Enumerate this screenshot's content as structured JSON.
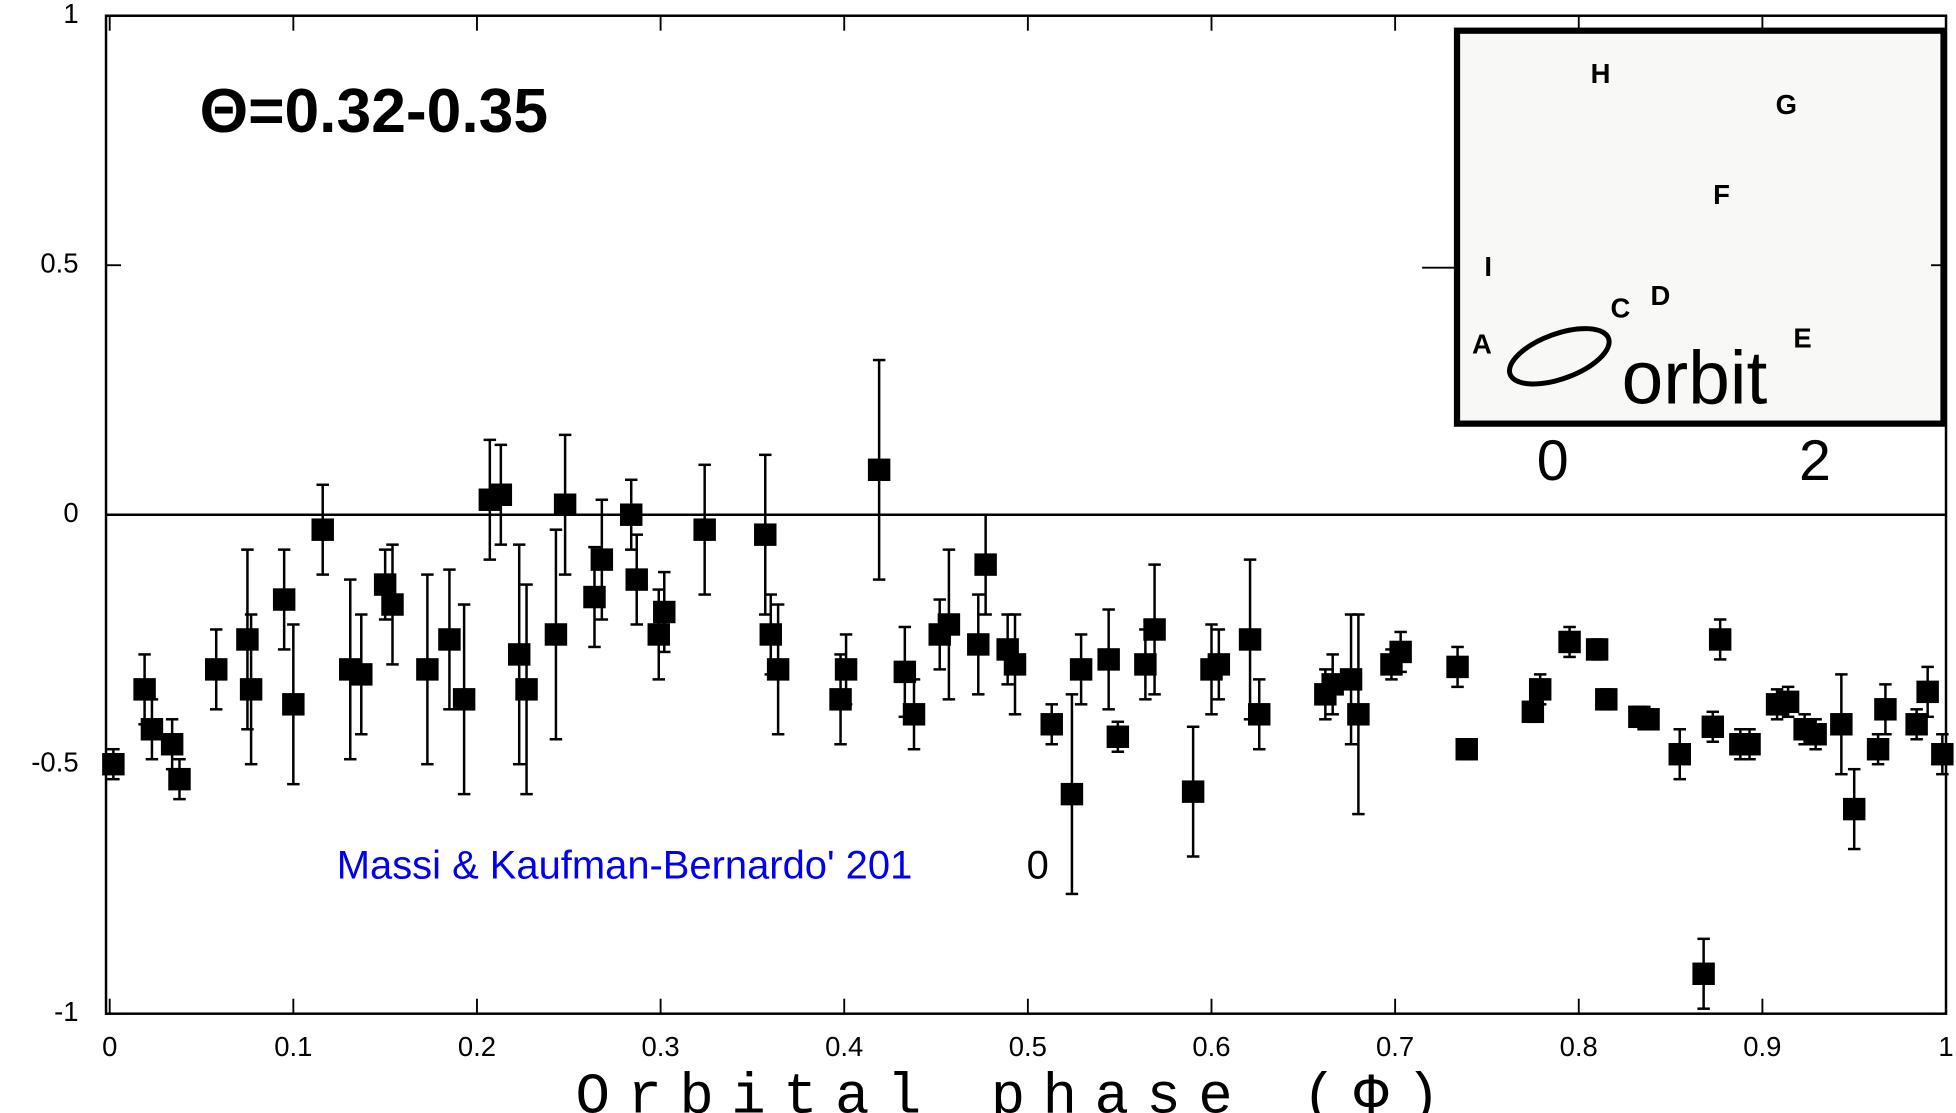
{
  "chart_data": {
    "type": "scatter",
    "annotations": [
      "Θ=0.32-0.35",
      "Massi & Kaufman-Bernardo' 201",
      "0"
    ],
    "x_label": "Orbital phase (Φ)",
    "xlim": [
      -0.002,
      1.0
    ],
    "ylim": [
      -1,
      1
    ],
    "xticks": [
      0,
      0.1,
      0.2,
      0.3,
      0.4,
      0.5,
      0.6,
      0.7,
      0.8,
      0.9,
      1
    ],
    "yticks": [
      -1,
      -0.5,
      0,
      0.5,
      1
    ],
    "hlines": [
      0
    ],
    "color": "#000000",
    "x": [
      0.002,
      0.019,
      0.023,
      0.034,
      0.038,
      0.058,
      0.075,
      0.077,
      0.095,
      0.1,
      0.116,
      0.131,
      0.137,
      0.15,
      0.154,
      0.173,
      0.185,
      0.193,
      0.207,
      0.213,
      0.223,
      0.227,
      0.243,
      0.248,
      0.264,
      0.268,
      0.284,
      0.287,
      0.299,
      0.302,
      0.324,
      0.357,
      0.36,
      0.364,
      0.398,
      0.401,
      0.419,
      0.433,
      0.438,
      0.452,
      0.457,
      0.473,
      0.477,
      0.489,
      0.493,
      0.513,
      0.524,
      0.529,
      0.544,
      0.549,
      0.564,
      0.569,
      0.59,
      0.6,
      0.604,
      0.621,
      0.626,
      0.662,
      0.666,
      0.676,
      0.68,
      0.698,
      0.703,
      0.734,
      0.739,
      0.775,
      0.779,
      0.795,
      0.81,
      0.815,
      0.833,
      0.838,
      0.855,
      0.868,
      0.873,
      0.877,
      0.888,
      0.893,
      0.908,
      0.914,
      0.923,
      0.929,
      0.943,
      0.95,
      0.963,
      0.967,
      0.984,
      0.99,
      0.998
    ],
    "values": [
      -0.5,
      -0.35,
      -0.43,
      -0.46,
      -0.53,
      -0.31,
      -0.25,
      -0.35,
      -0.17,
      -0.38,
      -0.03,
      -0.31,
      -0.32,
      -0.14,
      -0.18,
      -0.31,
      -0.25,
      -0.37,
      0.03,
      0.04,
      -0.28,
      -0.35,
      -0.24,
      0.02,
      -0.165,
      -0.09,
      0.0,
      -0.13,
      -0.24,
      -0.195,
      -0.03,
      -0.04,
      -0.24,
      -0.31,
      -0.37,
      -0.31,
      0.09,
      -0.315,
      -0.4,
      -0.24,
      -0.22,
      -0.26,
      -0.1,
      -0.27,
      -0.3,
      -0.42,
      -0.56,
      -0.31,
      -0.29,
      -0.445,
      -0.3,
      -0.23,
      -0.555,
      -0.31,
      -0.3,
      -0.25,
      -0.4,
      -0.36,
      -0.34,
      -0.33,
      -0.4,
      -0.3,
      -0.275,
      -0.305,
      -0.47,
      -0.395,
      -0.35,
      -0.255,
      -0.27,
      -0.37,
      -0.405,
      -0.41,
      -0.48,
      -0.92,
      -0.425,
      -0.25,
      -0.46,
      -0.46,
      -0.38,
      -0.375,
      -0.43,
      -0.44,
      -0.42,
      -0.59,
      -0.47,
      -0.39,
      -0.42,
      -0.355,
      -0.48
    ],
    "errors": [
      0.03,
      0.07,
      0.06,
      0.05,
      0.04,
      0.08,
      0.18,
      0.15,
      0.1,
      0.16,
      0.09,
      0.18,
      0.12,
      0.07,
      0.12,
      0.19,
      0.14,
      0.19,
      0.12,
      0.1,
      0.22,
      0.21,
      0.21,
      0.14,
      0.1,
      0.12,
      0.07,
      0.09,
      0.09,
      0.08,
      0.13,
      0.16,
      0.08,
      0.13,
      0.09,
      0.07,
      0.22,
      0.09,
      0.07,
      0.07,
      0.15,
      0.1,
      0.1,
      0.07,
      0.1,
      0.04,
      0.2,
      0.07,
      0.1,
      0.03,
      0.07,
      0.13,
      0.13,
      0.09,
      0.07,
      0.16,
      0.07,
      0.05,
      0.06,
      0.13,
      0.2,
      0.03,
      0.04,
      0.04,
      0.02,
      0.02,
      0.03,
      0.03,
      0.02,
      0.02,
      0.02,
      0.02,
      0.05,
      0.07,
      0.03,
      0.04,
      0.03,
      0.03,
      0.03,
      0.03,
      0.03,
      0.03,
      0.1,
      0.08,
      0.03,
      0.05,
      0.03,
      0.05,
      0.04
    ],
    "inset": {
      "labels": [
        "H",
        "G",
        "F",
        "I",
        "C",
        "D",
        "A",
        "E"
      ],
      "text": "orbit",
      "xlim": [
        -0.73,
        2.98
      ],
      "xticks": [
        0,
        2
      ]
    }
  }
}
